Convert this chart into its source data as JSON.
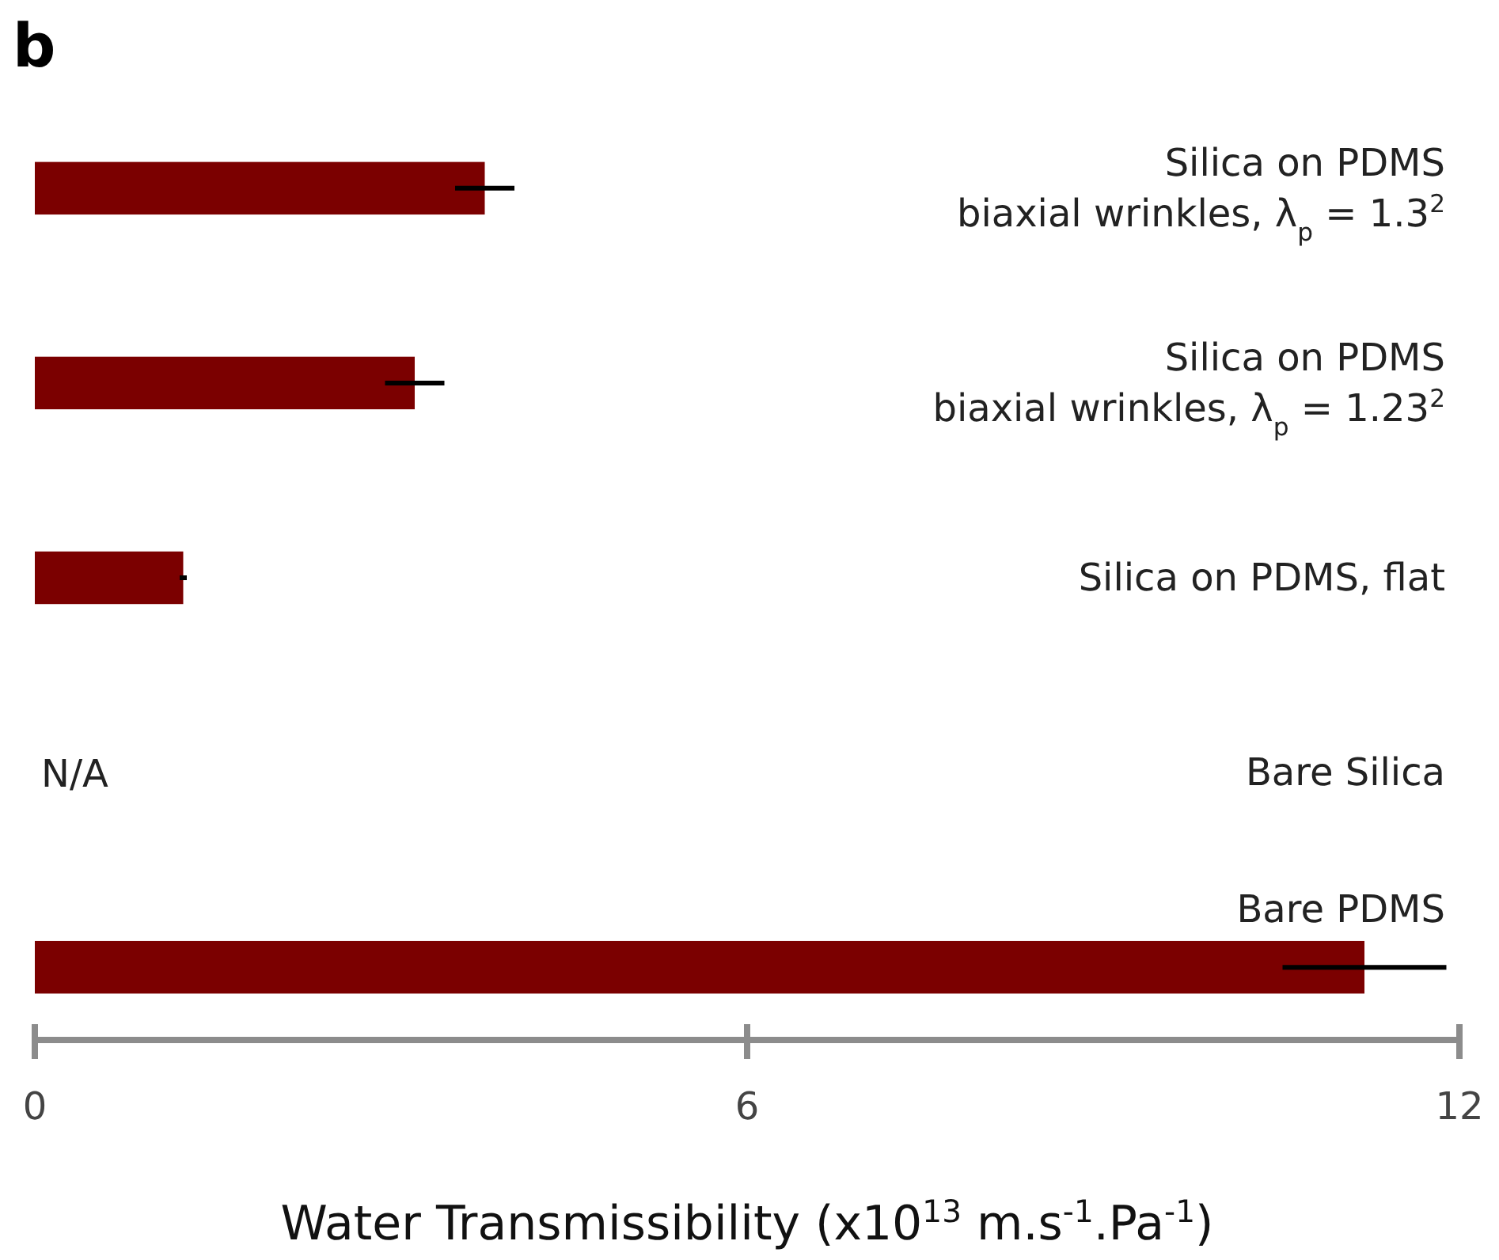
{
  "chart_data": {
    "type": "bar",
    "orientation": "horizontal",
    "title": "b",
    "categories": [
      "Silica on PDMS\nbiaxial wrinkles, λ$_{p}$ = 1.3$^{2}$",
      "Silica on PDMS\nbiaxial wrinkles, λ$_{p}$ = 1.23$^{2}$",
      "Silica on PDMS, flat",
      "Bare Silica",
      "Bare PDMS"
    ],
    "values": [
      3.79,
      3.2,
      1.25,
      null,
      11.2
    ],
    "errors": [
      0.25,
      0.25,
      0.03,
      null,
      0.69
    ],
    "color": "#7b0000",
    "xlim": [
      0,
      12
    ],
    "xticks": [
      0,
      6,
      12
    ],
    "xlabel": "Water Transmissibility (x10$^{13}$ m.s$^{-1}$.Pa$^{-1}$)",
    "annotations": [
      "N/A"
    ],
    "grid": false
  }
}
